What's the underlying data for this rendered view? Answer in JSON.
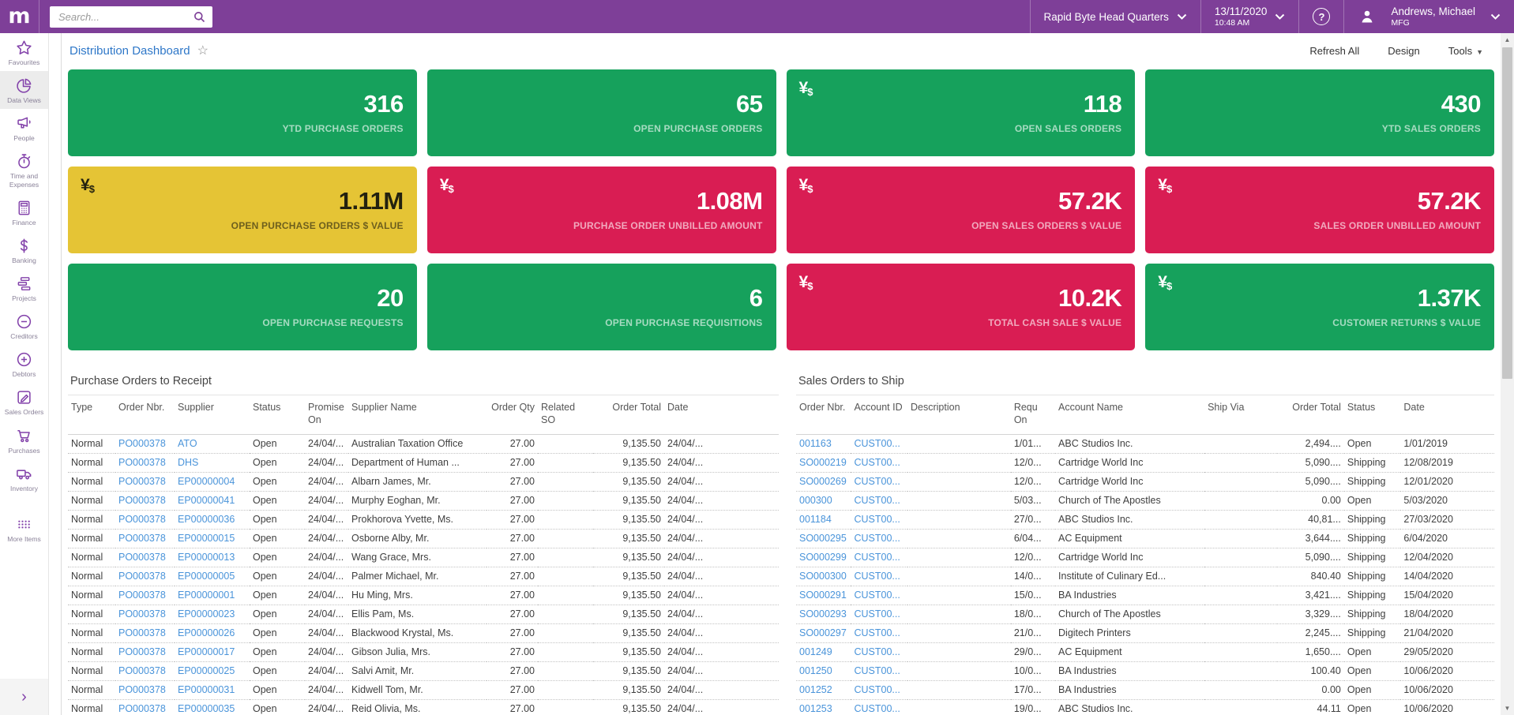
{
  "header": {
    "logo_letter": "m",
    "search_placeholder": "Search...",
    "company": "Rapid Byte Head Quarters",
    "date": "13/11/2020",
    "time": "10:48 AM",
    "help_symbol": "?",
    "user_name": "Andrews, Michael",
    "user_role": "MFG"
  },
  "sidebar": {
    "items": [
      {
        "label": "Favourites",
        "icon": "star",
        "selected": false
      },
      {
        "label": "Data Views",
        "icon": "pie-chart",
        "selected": true
      },
      {
        "label": "People",
        "icon": "megaphone",
        "selected": false
      },
      {
        "label": "Time and Expenses",
        "icon": "stopwatch",
        "selected": false
      },
      {
        "label": "Finance",
        "icon": "calculator",
        "selected": false
      },
      {
        "label": "Banking",
        "icon": "dollar",
        "selected": false
      },
      {
        "label": "Projects",
        "icon": "stack",
        "selected": false
      },
      {
        "label": "Creditors",
        "icon": "minus-circle",
        "selected": false
      },
      {
        "label": "Debtors",
        "icon": "plus-circle",
        "selected": false
      },
      {
        "label": "Sales Orders",
        "icon": "pencil-square",
        "selected": false
      },
      {
        "label": "Purchases",
        "icon": "cart",
        "selected": false
      },
      {
        "label": "Inventory",
        "icon": "truck",
        "selected": false
      },
      {
        "label": "More Items",
        "icon": "dots-grid",
        "selected": false
      }
    ],
    "expand_chevron": "›"
  },
  "toolbar": {
    "title": "Distribution Dashboard",
    "favourite_star": "☆",
    "refresh_label": "Refresh All",
    "design_label": "Design",
    "tools_label": "Tools"
  },
  "colors": {
    "header_purple": "#7e3f98",
    "icon_purple": "#8241aa",
    "tile_green": "#16a15c",
    "tile_yellow": "#e5c435",
    "tile_red": "#d91d53",
    "link_blue": "#4a94da",
    "title_blue": "#2e77c8"
  },
  "currency_icon": {
    "primary": "¥",
    "secondary": "$"
  },
  "kpi_tiles": [
    {
      "value": "316",
      "label": "YTD PURCHASE ORDERS",
      "color": "green",
      "currency_icon": false
    },
    {
      "value": "65",
      "label": "OPEN PURCHASE ORDERS",
      "color": "green",
      "currency_icon": false
    },
    {
      "value": "118",
      "label": "OPEN SALES ORDERS",
      "color": "green",
      "currency_icon": true
    },
    {
      "value": "430",
      "label": "YTD SALES ORDERS",
      "color": "green",
      "currency_icon": false
    },
    {
      "value": "1.11M",
      "label": "OPEN PURCHASE ORDERS $ VALUE",
      "color": "yellow",
      "currency_icon": true
    },
    {
      "value": "1.08M",
      "label": "PURCHASE ORDER UNBILLED AMOUNT",
      "color": "red",
      "currency_icon": true
    },
    {
      "value": "57.2K",
      "label": "OPEN SALES ORDERS $ VALUE",
      "color": "red",
      "currency_icon": true
    },
    {
      "value": "57.2K",
      "label": "SALES ORDER UNBILLED AMOUNT",
      "color": "red",
      "currency_icon": true
    },
    {
      "value": "20",
      "label": "OPEN PURCHASE REQUESTS",
      "color": "green",
      "currency_icon": false
    },
    {
      "value": "6",
      "label": "OPEN PURCHASE REQUISITIONS",
      "color": "green",
      "currency_icon": false
    },
    {
      "value": "10.2K",
      "label": "TOTAL CASH SALE $ VALUE",
      "color": "red",
      "currency_icon": true
    },
    {
      "value": "1.37K",
      "label": "CUSTOMER RETURNS $ VALUE",
      "color": "green",
      "currency_icon": true
    }
  ],
  "purchase_table": {
    "title": "Purchase Orders to Receipt",
    "headers": [
      "Type",
      "Order Nbr.",
      "Supplier",
      "Status",
      "Promise On",
      "Supplier Name",
      "Order Qty",
      "Related SO",
      "Order Total",
      "Date"
    ],
    "rows": [
      [
        "Normal",
        "PO000378",
        "ATO",
        "Open",
        "24/04/...",
        "Australian Taxation Office",
        "27.00",
        "",
        "9,135.50",
        "24/04/..."
      ],
      [
        "Normal",
        "PO000378",
        "DHS",
        "Open",
        "24/04/...",
        "Department of Human ...",
        "27.00",
        "",
        "9,135.50",
        "24/04/..."
      ],
      [
        "Normal",
        "PO000378",
        "EP00000004",
        "Open",
        "24/04/...",
        "Albarn James, Mr.",
        "27.00",
        "",
        "9,135.50",
        "24/04/..."
      ],
      [
        "Normal",
        "PO000378",
        "EP00000041",
        "Open",
        "24/04/...",
        "Murphy Eoghan, Mr.",
        "27.00",
        "",
        "9,135.50",
        "24/04/..."
      ],
      [
        "Normal",
        "PO000378",
        "EP00000036",
        "Open",
        "24/04/...",
        "Prokhorova Yvette, Ms.",
        "27.00",
        "",
        "9,135.50",
        "24/04/..."
      ],
      [
        "Normal",
        "PO000378",
        "EP00000015",
        "Open",
        "24/04/...",
        "Osborne Alby, Mr.",
        "27.00",
        "",
        "9,135.50",
        "24/04/..."
      ],
      [
        "Normal",
        "PO000378",
        "EP00000013",
        "Open",
        "24/04/...",
        "Wang Grace, Mrs.",
        "27.00",
        "",
        "9,135.50",
        "24/04/..."
      ],
      [
        "Normal",
        "PO000378",
        "EP00000005",
        "Open",
        "24/04/...",
        "Palmer Michael, Mr.",
        "27.00",
        "",
        "9,135.50",
        "24/04/..."
      ],
      [
        "Normal",
        "PO000378",
        "EP00000001",
        "Open",
        "24/04/...",
        "Hu Ming, Mrs.",
        "27.00",
        "",
        "9,135.50",
        "24/04/..."
      ],
      [
        "Normal",
        "PO000378",
        "EP00000023",
        "Open",
        "24/04/...",
        "Ellis Pam, Ms.",
        "27.00",
        "",
        "9,135.50",
        "24/04/..."
      ],
      [
        "Normal",
        "PO000378",
        "EP00000026",
        "Open",
        "24/04/...",
        "Blackwood Krystal, Ms.",
        "27.00",
        "",
        "9,135.50",
        "24/04/..."
      ],
      [
        "Normal",
        "PO000378",
        "EP00000017",
        "Open",
        "24/04/...",
        "Gibson Julia, Mrs.",
        "27.00",
        "",
        "9,135.50",
        "24/04/..."
      ],
      [
        "Normal",
        "PO000378",
        "EP00000025",
        "Open",
        "24/04/...",
        "Salvi Amit, Mr.",
        "27.00",
        "",
        "9,135.50",
        "24/04/..."
      ],
      [
        "Normal",
        "PO000378",
        "EP00000031",
        "Open",
        "24/04/...",
        "Kidwell Tom, Mr.",
        "27.00",
        "",
        "9,135.50",
        "24/04/..."
      ],
      [
        "Normal",
        "PO000378",
        "EP00000035",
        "Open",
        "24/04/...",
        "Reid Olivia, Ms.",
        "27.00",
        "",
        "9,135.50",
        "24/04/..."
      ]
    ]
  },
  "sales_table": {
    "title": "Sales Orders to Ship",
    "headers": [
      "Order Nbr.",
      "Account ID",
      "Description",
      "Requ On",
      "Account Name",
      "Ship Via",
      "Order Total",
      "Status",
      "Date"
    ],
    "rows": [
      [
        "001163",
        "CUST00...",
        "",
        "1/01...",
        "ABC Studios Inc.",
        "",
        "2,494....",
        "Open",
        "1/01/2019"
      ],
      [
        "SO000219",
        "CUST00...",
        "",
        "12/0...",
        "Cartridge World Inc",
        "",
        "5,090....",
        "Shipping",
        "12/08/2019"
      ],
      [
        "SO000269",
        "CUST00...",
        "",
        "12/0...",
        "Cartridge World Inc",
        "",
        "5,090....",
        "Shipping",
        "12/01/2020"
      ],
      [
        "000300",
        "CUST00...",
        "",
        "5/03...",
        "Church of The Apostles",
        "",
        "0.00",
        "Open",
        "5/03/2020"
      ],
      [
        "001184",
        "CUST00...",
        "",
        "27/0...",
        "ABC Studios Inc.",
        "",
        "40,81...",
        "Shipping",
        "27/03/2020"
      ],
      [
        "SO000295",
        "CUST00...",
        "",
        "6/04...",
        "AC Equipment",
        "",
        "3,644....",
        "Shipping",
        "6/04/2020"
      ],
      [
        "SO000299",
        "CUST00...",
        "",
        "12/0...",
        "Cartridge World Inc",
        "",
        "5,090....",
        "Shipping",
        "12/04/2020"
      ],
      [
        "SO000300",
        "CUST00...",
        "",
        "14/0...",
        "Institute of Culinary Ed...",
        "",
        "840.40",
        "Shipping",
        "14/04/2020"
      ],
      [
        "SO000291",
        "CUST00...",
        "",
        "15/0...",
        "BA Industries",
        "",
        "3,421....",
        "Shipping",
        "15/04/2020"
      ],
      [
        "SO000293",
        "CUST00...",
        "",
        "18/0...",
        "Church of The Apostles",
        "",
        "3,329....",
        "Shipping",
        "18/04/2020"
      ],
      [
        "SO000297",
        "CUST00...",
        "",
        "21/0...",
        "Digitech Printers",
        "",
        "2,245....",
        "Shipping",
        "21/04/2020"
      ],
      [
        "001249",
        "CUST00...",
        "",
        "29/0...",
        "AC Equipment",
        "",
        "1,650....",
        "Open",
        "29/05/2020"
      ],
      [
        "001250",
        "CUST00...",
        "",
        "10/0...",
        "BA Industries",
        "",
        "100.40",
        "Open",
        "10/06/2020"
      ],
      [
        "001252",
        "CUST00...",
        "",
        "17/0...",
        "BA Industries",
        "",
        "0.00",
        "Open",
        "10/06/2020"
      ],
      [
        "001253",
        "CUST00...",
        "",
        "19/0...",
        "ABC Studios Inc.",
        "",
        "44.11",
        "Open",
        "10/06/2020"
      ]
    ]
  },
  "scrollbar": {
    "up_arrow": "▲",
    "down_arrow": "▼"
  }
}
